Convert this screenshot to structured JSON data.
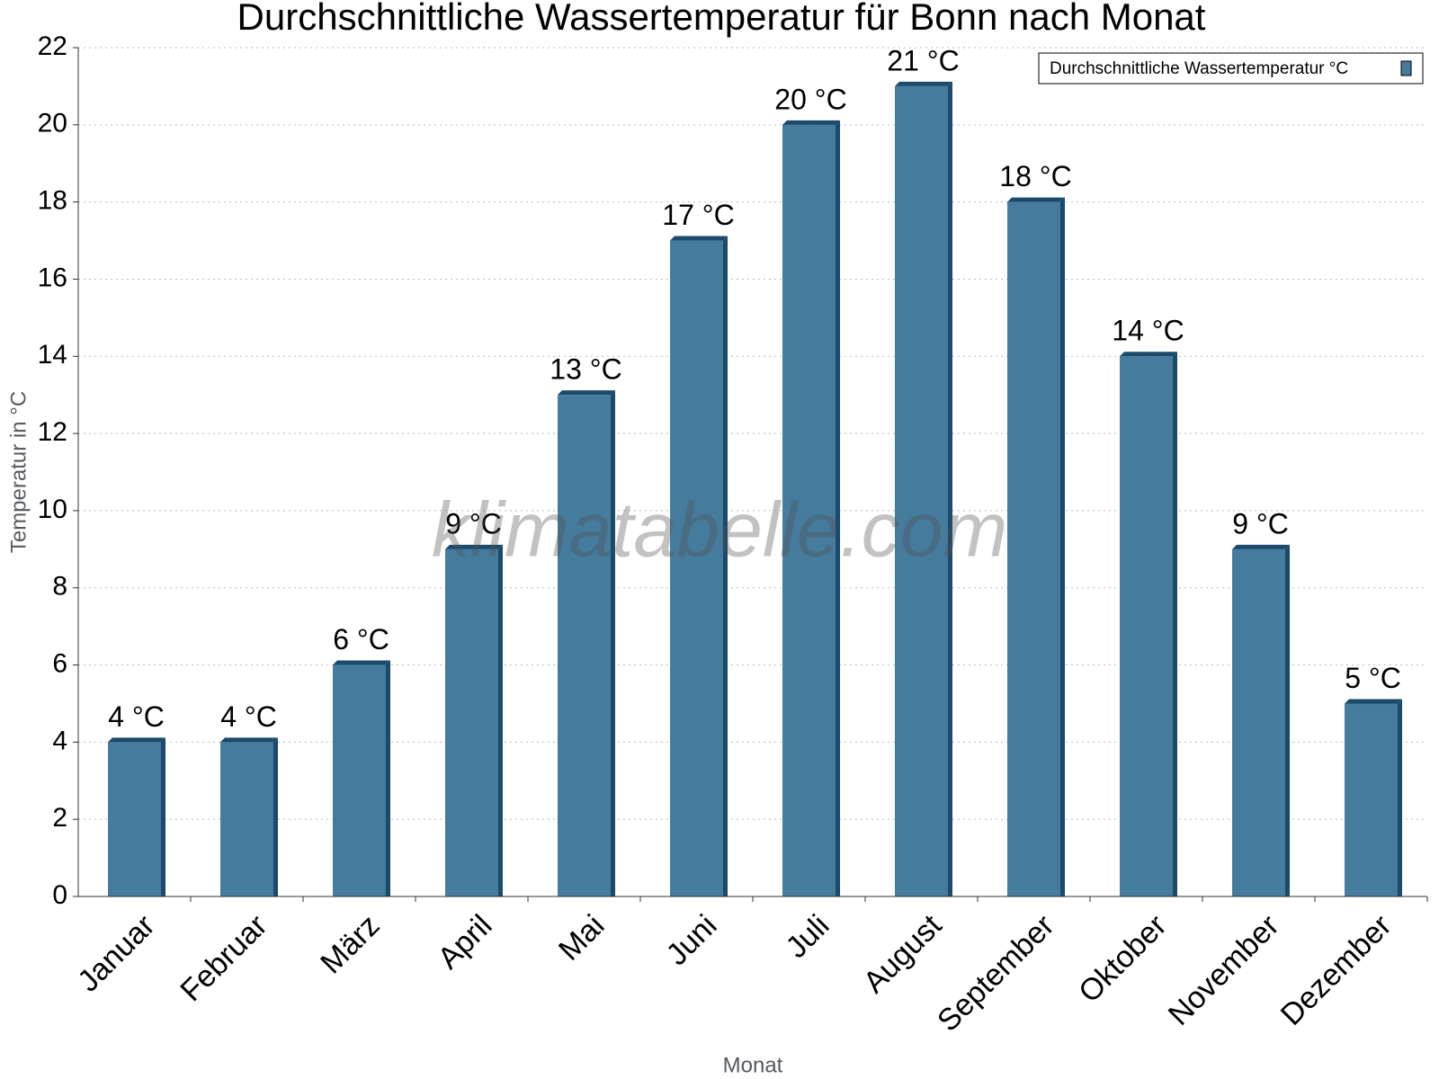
{
  "chart_data": {
    "type": "bar3d",
    "title": "Durchschnittliche Wassertemperatur für Bonn nach Monat",
    "x_label": "Monat",
    "y_label": "Temperatur in °C",
    "watermark": "klimatabelle.com",
    "categories": [
      "Januar",
      "Februar",
      "März",
      "April",
      "Mai",
      "Juni",
      "Juli",
      "August",
      "September",
      "Oktober",
      "November",
      "Dezember"
    ],
    "series": [
      {
        "name": "Durchschnittliche Wassertemperatur °C",
        "color": "#457b9d",
        "values": [
          4,
          4,
          6,
          9,
          13,
          17,
          20,
          21,
          18,
          14,
          9,
          5
        ],
        "value_labels": [
          "4 °C",
          "4 °C",
          "6 °C",
          "9 °C",
          "13 °C",
          "17 °C",
          "20 °C",
          "21 °C",
          "18 °C",
          "14 °C",
          "9 °C",
          "5 °C"
        ]
      }
    ],
    "ylim": [
      0,
      22
    ],
    "yticks": [
      0,
      2,
      4,
      6,
      8,
      10,
      12,
      14,
      16,
      18,
      20,
      22
    ],
    "grid": true,
    "legend": "top-right"
  }
}
